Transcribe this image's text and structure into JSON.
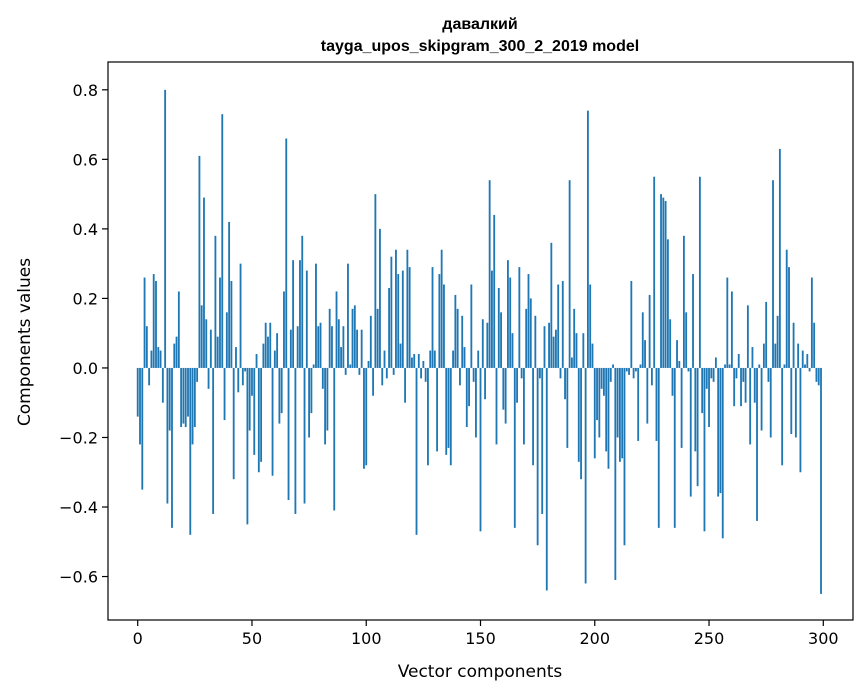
{
  "chart_data": {
    "type": "bar",
    "title": "давалкий",
    "subtitle": "tayga_upos_skipgram_300_2_2019 model",
    "xlabel": "Vector components",
    "ylabel": "Components values",
    "xlim": [
      -13,
      313
    ],
    "ylim": [
      -0.725,
      0.88
    ],
    "xticks": [
      0,
      50,
      100,
      150,
      200,
      250,
      300
    ],
    "yticks": [
      -0.6,
      -0.4,
      -0.2,
      0.0,
      0.2,
      0.4,
      0.6,
      0.8
    ],
    "xtick_labels": [
      "0",
      "50",
      "100",
      "150",
      "200",
      "250",
      "300"
    ],
    "ytick_labels": [
      "−0.6",
      "−0.4",
      "−0.2",
      "0.0",
      "0.2",
      "0.4",
      "0.6",
      "0.8"
    ],
    "bar_color": "#1f77b4",
    "grid": false,
    "values": [
      -0.14,
      -0.22,
      -0.35,
      0.26,
      0.12,
      -0.05,
      0.05,
      0.27,
      0.25,
      0.06,
      0.05,
      -0.1,
      0.8,
      -0.39,
      -0.18,
      -0.46,
      0.07,
      0.09,
      0.22,
      -0.17,
      -0.16,
      -0.17,
      -0.14,
      -0.48,
      -0.22,
      -0.17,
      -0.04,
      0.61,
      0.18,
      0.49,
      0.14,
      -0.06,
      0.11,
      -0.42,
      0.38,
      0.09,
      0.26,
      0.73,
      -0.15,
      0.16,
      0.42,
      0.25,
      -0.32,
      0.06,
      -0.07,
      0.3,
      -0.05,
      -0.01,
      -0.45,
      -0.18,
      -0.08,
      -0.25,
      0.04,
      -0.3,
      -0.27,
      0.07,
      0.13,
      0.09,
      0.13,
      -0.31,
      0.05,
      0.1,
      -0.16,
      -0.13,
      0.22,
      0.66,
      -0.38,
      0.11,
      0.31,
      -0.42,
      0.12,
      0.31,
      0.38,
      -0.39,
      0.28,
      -0.2,
      -0.13,
      0.01,
      0.3,
      0.12,
      0.13,
      -0.06,
      -0.22,
      -0.18,
      0.17,
      0.12,
      -0.41,
      0.22,
      0.14,
      0.06,
      0.12,
      -0.02,
      0.3,
      0.01,
      0.17,
      0.18,
      0.11,
      -0.02,
      0.11,
      -0.29,
      -0.28,
      0.02,
      0.15,
      -0.08,
      0.5,
      0.17,
      0.4,
      -0.05,
      0.05,
      -0.03,
      0.23,
      0.32,
      -0.02,
      0.34,
      0.27,
      0.07,
      0.28,
      -0.1,
      0.34,
      0.29,
      0.03,
      0.04,
      -0.48,
      0.04,
      -0.03,
      0.02,
      -0.04,
      -0.28,
      0.05,
      0.29,
      0.05,
      -0.24,
      0.27,
      0.34,
      0.24,
      -0.25,
      -0.23,
      -0.28,
      0.05,
      0.21,
      0.17,
      -0.05,
      0.15,
      0.06,
      -0.17,
      -0.11,
      0.24,
      -0.04,
      -0.2,
      0.05,
      -0.47,
      0.14,
      -0.09,
      0.13,
      0.54,
      0.28,
      0.44,
      -0.22,
      0.23,
      0.16,
      -0.12,
      -0.16,
      0.31,
      0.26,
      0.1,
      -0.46,
      -0.1,
      0.29,
      -0.03,
      -0.22,
      0.17,
      0.27,
      0.2,
      -0.28,
      0.15,
      -0.51,
      -0.03,
      -0.42,
      0.12,
      -0.64,
      0.13,
      0.36,
      0.09,
      0.11,
      0.24,
      -0.03,
      0.25,
      -0.09,
      -0.23,
      0.54,
      0.03,
      0.17,
      0.1,
      -0.27,
      -0.32,
      0.1,
      -0.62,
      0.74,
      0.24,
      0.07,
      -0.26,
      -0.15,
      -0.2,
      -0.06,
      -0.08,
      -0.24,
      -0.29,
      -0.04,
      0.01,
      -0.61,
      -0.2,
      -0.27,
      -0.26,
      -0.51,
      -0.01,
      -0.02,
      0.25,
      -0.03,
      -0.01,
      -0.21,
      0.01,
      0.16,
      0.08,
      -0.16,
      0.21,
      -0.05,
      0.55,
      -0.21,
      -0.46,
      0.5,
      0.49,
      0.48,
      0.37,
      0.14,
      -0.08,
      -0.46,
      0.08,
      0.02,
      -0.23,
      0.38,
      0.16,
      -0.01,
      -0.37,
      0.27,
      -0.24,
      -0.34,
      0.55,
      -0.13,
      -0.47,
      -0.06,
      -0.17,
      -0.03,
      -0.04,
      0.03,
      -0.37,
      -0.36,
      -0.49,
      0.01,
      0.26,
      0.01,
      0.22,
      -0.11,
      -0.03,
      0.04,
      -0.11,
      -0.04,
      -0.1,
      0.18,
      -0.22,
      0.06,
      -0.1,
      -0.44,
      0.01,
      -0.18,
      0.07,
      0.19,
      -0.04,
      -0.2,
      0.54,
      0.07,
      0.15,
      0.63,
      -0.28,
      0.01,
      0.34,
      0.29,
      -0.19,
      0.13,
      -0.2,
      0.07,
      -0.3,
      0.05,
      0.01,
      0.04,
      -0.01,
      0.26,
      0.13,
      -0.04,
      -0.05,
      -0.65
    ]
  }
}
